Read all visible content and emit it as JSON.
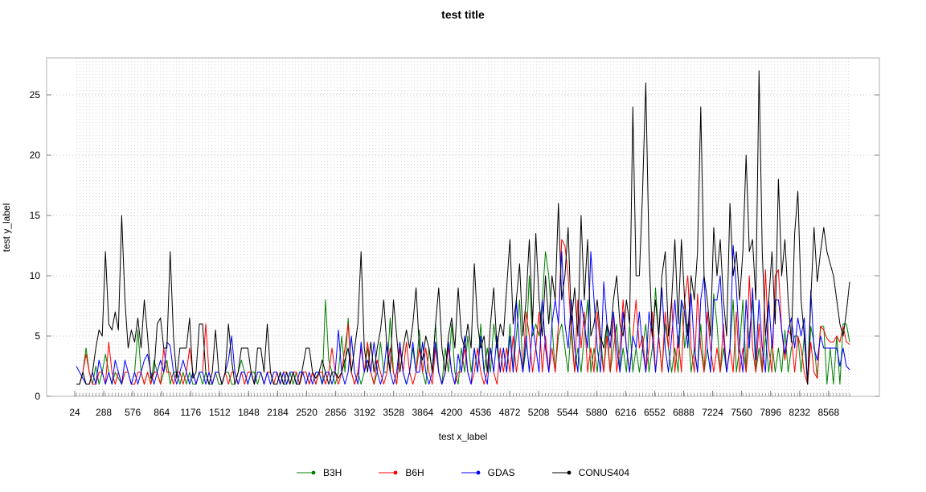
{
  "chart_data": {
    "type": "line",
    "title": "test title",
    "xlabel": "test x_label",
    "ylabel": "test y_label",
    "y_ticks": [
      0,
      5,
      10,
      15,
      20,
      25
    ],
    "ylim": [
      0,
      28
    ],
    "grid": "dotted",
    "legend_position": "bottom",
    "x_tick_labels": [
      "24",
      "288",
      "576",
      "864",
      "1176",
      "1512",
      "1848",
      "2184",
      "2520",
      "2856",
      "3192",
      "3528",
      "3864",
      "4200",
      "4536",
      "4872",
      "5208",
      "5544",
      "5880",
      "6216",
      "6552",
      "6888",
      "7224",
      "7560",
      "7896",
      "8232",
      "8568"
    ],
    "series": [
      {
        "name": "B3H",
        "color": "#008000",
        "values": [
          1,
          1,
          2,
          4,
          2,
          1,
          2.5,
          1,
          2,
          3.5,
          2,
          1,
          2,
          1.5,
          1,
          2,
          2,
          1,
          2,
          5.5,
          2,
          1,
          2,
          1,
          3,
          2,
          1,
          2,
          3,
          1,
          2,
          2,
          1,
          2,
          1,
          2,
          1,
          1,
          2,
          1,
          2,
          1,
          1,
          2,
          1,
          1,
          2,
          2,
          1,
          1,
          2,
          3,
          2,
          1,
          2,
          2,
          1,
          2,
          1,
          2,
          2,
          1,
          1,
          2,
          1,
          1,
          2,
          1,
          2,
          1,
          2,
          2,
          1,
          2,
          1,
          2,
          1,
          8,
          3,
          2,
          1,
          2,
          5,
          2,
          6.5,
          2,
          1,
          2,
          1,
          2,
          4,
          2,
          1,
          2,
          4.5,
          2,
          2,
          6.5,
          2,
          1,
          4,
          2,
          1,
          2,
          4,
          2,
          5.5,
          2,
          1,
          4,
          2,
          6,
          2,
          1,
          4,
          2,
          6,
          2,
          1,
          4,
          2,
          5,
          2,
          4,
          2,
          6,
          2,
          4,
          2,
          6,
          4,
          2,
          4,
          2,
          6,
          2,
          5,
          8,
          2,
          4,
          10,
          5,
          6,
          5,
          8,
          12,
          10,
          6,
          2,
          5,
          6,
          4,
          2,
          6,
          2,
          4,
          2,
          5,
          8,
          2,
          4,
          2,
          5,
          2,
          6,
          2,
          4,
          6,
          2,
          4,
          2,
          6,
          2,
          4,
          2,
          4,
          6,
          2,
          4,
          9,
          5,
          2,
          6,
          4,
          2,
          4,
          2,
          8,
          4,
          6,
          2,
          4,
          2,
          6,
          2,
          4,
          2,
          8.5,
          6,
          2,
          4,
          2,
          4,
          8,
          2,
          4,
          8,
          2,
          5,
          8,
          2,
          4,
          2,
          5,
          2,
          4.5,
          2,
          4,
          2,
          5.5,
          2,
          4,
          5,
          5,
          2,
          5,
          1,
          5.8,
          4.4,
          1.5,
          5.8,
          5.8,
          1,
          4,
          1,
          5,
          1,
          6,
          6,
          4.5
        ]
      },
      {
        "name": "B6H",
        "color": "#ff0000",
        "values": [
          1,
          1,
          2,
          3.5,
          2,
          1,
          1,
          2,
          2,
          1,
          4.5,
          2,
          1,
          2,
          1,
          2,
          2,
          1,
          1,
          2,
          2,
          1,
          2,
          1,
          2,
          2,
          1,
          4,
          2,
          2,
          1,
          2,
          2,
          1,
          2,
          4,
          2,
          1,
          2,
          2,
          6,
          2,
          1,
          2,
          2,
          1,
          2,
          1,
          2,
          2,
          1,
          2,
          1,
          2,
          2,
          1,
          2,
          2,
          1,
          2,
          2,
          1,
          2,
          1,
          2,
          2,
          1,
          2,
          2,
          1,
          2,
          2,
          1,
          2,
          1,
          2,
          2,
          1,
          2,
          4,
          2,
          1,
          2,
          4,
          6,
          2,
          1,
          2,
          4,
          2,
          4.5,
          2,
          1,
          3,
          2,
          1,
          2,
          4,
          2,
          1,
          4,
          2,
          4.5,
          2,
          1,
          2,
          4,
          2,
          4,
          2,
          1,
          4,
          2,
          1,
          2,
          4,
          2,
          1,
          2,
          2,
          4,
          2,
          1,
          2,
          4,
          2,
          1,
          2,
          4,
          2,
          1,
          4,
          2,
          4,
          2,
          5,
          2,
          4,
          2,
          7,
          5,
          2,
          4,
          7,
          2,
          5,
          2,
          4,
          2,
          6,
          13,
          12.5,
          10,
          5,
          2,
          8,
          4,
          7,
          2,
          4,
          2,
          7,
          4,
          2,
          5,
          2,
          7,
          2,
          4,
          8,
          4,
          2,
          5,
          8,
          4,
          5,
          2,
          4,
          7,
          2,
          5,
          2,
          7,
          4,
          8,
          2,
          5,
          2,
          8,
          10,
          4,
          2,
          8.5,
          4,
          2,
          7,
          4,
          2,
          4,
          2,
          6,
          2,
          4,
          2,
          7,
          2,
          4,
          2,
          10,
          4,
          2,
          6,
          2,
          10.5,
          4,
          2,
          10,
          10.5,
          5.5,
          3,
          5.5,
          5,
          2,
          5,
          4,
          2,
          1,
          4.5,
          2,
          1.5,
          5.8,
          5.5,
          4.8,
          4.5,
          4.5,
          5,
          4.5,
          5.8,
          4.5,
          4.3
        ]
      },
      {
        "name": "GDAS",
        "color": "#0000ff",
        "values": [
          2.5,
          2,
          1.5,
          1,
          1,
          2,
          1,
          3,
          2,
          1,
          2,
          1,
          3,
          2,
          1,
          3,
          2,
          1,
          2,
          1,
          2,
          3,
          3.5,
          2,
          1,
          2,
          3,
          2,
          4.5,
          4.2,
          2,
          1,
          2,
          3,
          2,
          1,
          2,
          1,
          2,
          2,
          1,
          2,
          1,
          2,
          2,
          1,
          2,
          3,
          5,
          2,
          1,
          2,
          2,
          1,
          2,
          1,
          2,
          2,
          1,
          2,
          1,
          2,
          2,
          1,
          2,
          1,
          2,
          2,
          1,
          2,
          2,
          1,
          2,
          1,
          2,
          2,
          1,
          2,
          2,
          1,
          2,
          5.5,
          2,
          1,
          2,
          5,
          2,
          1,
          4.5,
          2,
          3,
          2,
          4.5,
          2,
          1,
          2,
          4.5,
          2,
          1,
          2,
          4.5,
          2,
          1,
          2,
          4.5,
          2,
          2,
          4.5,
          2,
          1,
          2,
          4.5,
          2,
          1,
          2,
          4.5,
          2,
          1,
          3.5,
          2,
          5,
          2,
          1,
          4,
          2,
          5,
          2,
          1,
          4,
          2,
          5,
          2,
          4,
          2,
          5,
          2,
          8,
          4,
          2,
          5,
          2,
          6,
          4,
          2,
          8,
          4,
          2,
          6,
          8,
          6,
          12,
          6,
          4,
          8,
          4,
          2,
          8,
          6,
          4,
          12,
          8,
          4,
          2,
          9.5,
          6,
          4,
          7,
          4,
          2,
          7,
          4,
          2,
          5,
          4,
          7,
          4,
          2,
          7,
          5,
          2,
          5,
          9,
          4,
          2,
          5,
          8,
          4,
          8,
          7,
          4,
          8.5,
          4,
          2,
          8,
          10,
          4,
          2,
          8,
          8,
          10,
          5,
          2,
          4,
          12.5,
          9,
          4,
          2,
          8,
          4,
          9,
          3,
          8,
          4,
          2,
          8,
          4,
          8,
          8,
          5.5,
          3.5,
          5.5,
          6.5,
          4,
          6.5,
          5,
          6.5,
          1,
          8.8,
          4,
          3,
          5,
          4,
          4,
          4,
          4,
          4,
          2.5,
          4,
          2.5,
          2.2
        ]
      },
      {
        "name": "CONUS404",
        "color": "#000000",
        "values": [
          1,
          1,
          2,
          1,
          1,
          2,
          4,
          5.5,
          5,
          12,
          6,
          5.5,
          7,
          5.5,
          15,
          8,
          4,
          5.5,
          4.5,
          6.5,
          4,
          8,
          5,
          1.5,
          2,
          6,
          6.5,
          4,
          4,
          12,
          5,
          1.5,
          4,
          4,
          4,
          6.5,
          1.5,
          2,
          6,
          6,
          2,
          1,
          2,
          5.5,
          2,
          1,
          2,
          6,
          3,
          1,
          2,
          4,
          4,
          4,
          2,
          1,
          4,
          4,
          2,
          6,
          2,
          1,
          1,
          2,
          1,
          2,
          1,
          2,
          1,
          1,
          2.5,
          4,
          4,
          2,
          1.5,
          2,
          3,
          2,
          1,
          2,
          2,
          1.5,
          2,
          3,
          4,
          2,
          4,
          6,
          12,
          4,
          2,
          4.5,
          2,
          4,
          5.5,
          8,
          4,
          2,
          8,
          5,
          2,
          4,
          5.5,
          4,
          6,
          9,
          4,
          3,
          5,
          4,
          2,
          6,
          9,
          4,
          2,
          5,
          6.5,
          4,
          9,
          5,
          4,
          6,
          4,
          11,
          6,
          4,
          5,
          2,
          6,
          9,
          4,
          6,
          5,
          9,
          13,
          6,
          8,
          11,
          5,
          8,
          13,
          6,
          13.5,
          8,
          5,
          10,
          6,
          10,
          8,
          16,
          8,
          10,
          14,
          6,
          9,
          5,
          15,
          8,
          13,
          5,
          6,
          8,
          5,
          4,
          6,
          5,
          8,
          10,
          6,
          5,
          8,
          6,
          24,
          10,
          10,
          17,
          26,
          12,
          5,
          8,
          5,
          10,
          12,
          5,
          8,
          13,
          6,
          13,
          8,
          5,
          10,
          8,
          12,
          24,
          10,
          8,
          5,
          14,
          10,
          13,
          8,
          5,
          16,
          10,
          12,
          8,
          12,
          20,
          12,
          13,
          8,
          27,
          12,
          5,
          8,
          12,
          6,
          18,
          10,
          13,
          8,
          4.5,
          13.5,
          17,
          8,
          5,
          1,
          8,
          14,
          9.5,
          12,
          14,
          12,
          11,
          10,
          8,
          6,
          5,
          7,
          9.5
        ]
      }
    ]
  },
  "colors": {
    "plot_border": "#b0b0b0",
    "grid_dot": "#dcdcdc",
    "grid_major": "#c8c8c8",
    "tick": "#808080",
    "text": "#000000"
  }
}
